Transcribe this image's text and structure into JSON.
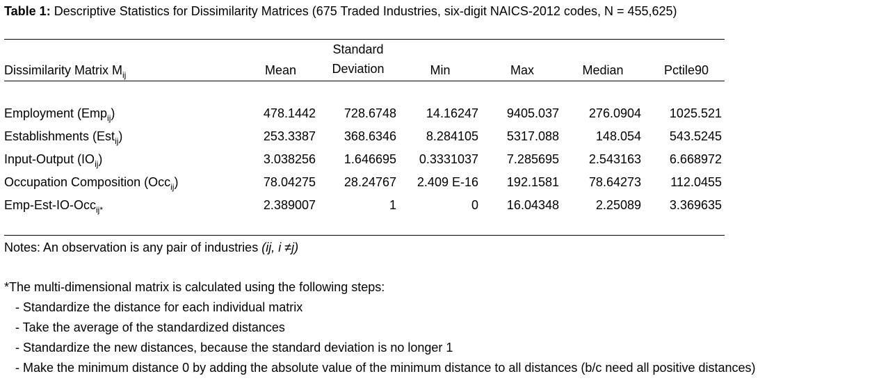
{
  "title": {
    "label": "Table 1:",
    "text": " Descriptive Statistics for Dissimilarity Matrices (675 Traded Industries, six-digit NAICS-2012 codes, N = 455,625)"
  },
  "table": {
    "header": {
      "col0_main": "Dissimilarity Matrix M",
      "col0_sub": "ij",
      "mean": "Mean",
      "sd_line1": "Standard",
      "sd_line2": "Deviation",
      "min": "Min",
      "max": "Max",
      "median": "Median",
      "p90": "Pctile90"
    },
    "rows": [
      {
        "name": "Employment (Emp",
        "sub": "ij",
        "close": ")",
        "mean": "478.1442",
        "sd": "728.6748",
        "min": "14.16247",
        "max": "9405.037",
        "median": "276.0904",
        "p90": "1025.521"
      },
      {
        "name": "Establishments (Est",
        "sub": "ij",
        "close": ")",
        "mean": "253.3387",
        "sd": "368.6346",
        "min": "8.284105",
        "max": "5317.088",
        "median": "148.054",
        "p90": "543.5245"
      },
      {
        "name": "Input-Output (IO",
        "sub": "ij",
        "close": ")",
        "mean": "3.038256",
        "sd": "1.646695",
        "min": "0.3331037",
        "max": "7.285695",
        "median": "2.543163",
        "p90": "6.668972"
      },
      {
        "name": "Occupation Composition (Occ",
        "sub": "ij",
        "close": ")",
        "mean": "78.04275",
        "sd": "28.24767",
        "min": "2.409 E-16",
        "max": "192.1581",
        "median": "78.64273",
        "p90": "112.0455"
      },
      {
        "name": "Emp-Est-IO-Occ",
        "sub": "ij*",
        "close": "",
        "mean": "2.389007",
        "sd": "1",
        "min": "0",
        "max": "16.04348",
        "median": "2.25089",
        "p90": "3.369635"
      }
    ]
  },
  "notes": {
    "observation_prefix": "Notes: An observation is any pair of industries ",
    "observation_italic": "(ij, i ≠j)",
    "footnote": "*The multi-dimensional matrix is calculated using the following steps:",
    "steps": [
      "- Standardize the distance for each individual matrix",
      "- Take the average of the standardized distances",
      "- Standardize the new distances, because the standard deviation is no longer 1",
      "- Make the minimum distance 0 by adding the absolute value of the minimum distance to all distances (b/c need all positive distances)"
    ]
  }
}
